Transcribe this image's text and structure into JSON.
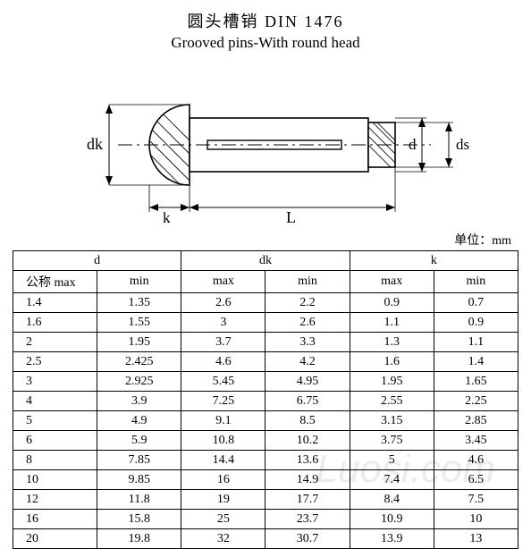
{
  "title": {
    "cn": "圆头槽销  DIN 1476",
    "en": "Grooved pins-With round head"
  },
  "units_label": "单位：mm",
  "diagram": {
    "labels": {
      "dk": "dk",
      "d": "d",
      "ds": "ds",
      "k": "k",
      "L": "L"
    },
    "stroke": "#000000",
    "fill": "#ffffff",
    "hatch": "#000000",
    "centerline": "#000000"
  },
  "table": {
    "group_headers": [
      "d",
      "dk",
      "k"
    ],
    "sub_headers": {
      "nominal": "公称  max",
      "min": "min",
      "max": "max"
    },
    "columns_layout": [
      "nominal_max",
      "min",
      "max",
      "min",
      "max",
      "min"
    ],
    "rows": [
      [
        "1.4",
        "1.35",
        "2.6",
        "2.2",
        "0.9",
        "0.7"
      ],
      [
        "1.6",
        "1.55",
        "3",
        "2.6",
        "1.1",
        "0.9"
      ],
      [
        "2",
        "1.95",
        "3.7",
        "3.3",
        "1.3",
        "1.1"
      ],
      [
        "2.5",
        "2.425",
        "4.6",
        "4.2",
        "1.6",
        "1.4"
      ],
      [
        "3",
        "2.925",
        "5.45",
        "4.95",
        "1.95",
        "1.65"
      ],
      [
        "4",
        "3.9",
        "7.25",
        "6.75",
        "2.55",
        "2.25"
      ],
      [
        "5",
        "4.9",
        "9.1",
        "8.5",
        "3.15",
        "2.85"
      ],
      [
        "6",
        "5.9",
        "10.8",
        "10.2",
        "3.75",
        "3.45"
      ],
      [
        "8",
        "7.85",
        "14.4",
        "13.6",
        "5",
        "4.6"
      ],
      [
        "10",
        "9.85",
        "16",
        "14.9",
        "7.4",
        "6.5"
      ],
      [
        "12",
        "11.8",
        "19",
        "17.7",
        "8.4",
        "7.5"
      ],
      [
        "16",
        "15.8",
        "25",
        "23.7",
        "10.9",
        "10"
      ],
      [
        "20",
        "19.8",
        "32",
        "30.7",
        "13.9",
        "13"
      ]
    ],
    "col_widths_pct": [
      16.6,
      16.6,
      16.6,
      16.6,
      16.6,
      16.6
    ],
    "border_color": "#000000",
    "font_size_pt": 11
  },
  "watermark": "Luosi.com"
}
